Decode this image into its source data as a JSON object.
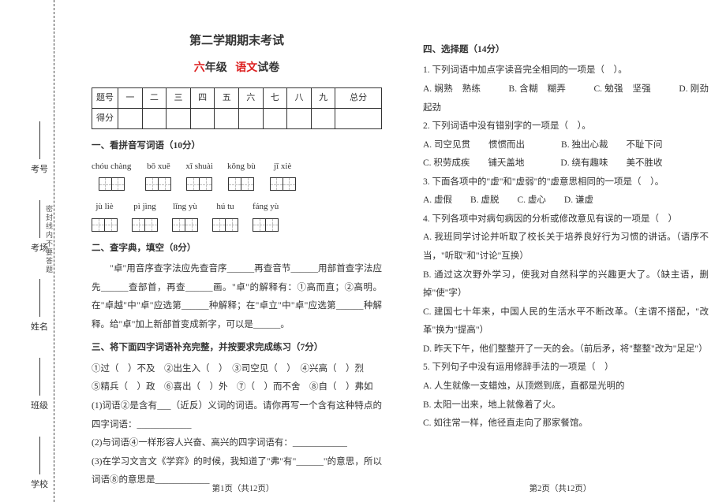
{
  "gutter": {
    "items": [
      {
        "label": "考号"
      },
      {
        "label": "考场"
      },
      {
        "label": "姓名"
      },
      {
        "label": "班级"
      },
      {
        "label": "学校"
      }
    ],
    "seal": "密封线内不要答题"
  },
  "header": {
    "line1": "第二学期期末考试",
    "grade": "六",
    "grade_suffix": "年级",
    "subject": "语文",
    "subject_suffix": "试卷"
  },
  "score_table": {
    "row1": [
      "题号",
      "一",
      "二",
      "三",
      "四",
      "五",
      "六",
      "七",
      "八",
      "九",
      "总分"
    ],
    "row2_label": "得分"
  },
  "sect1": {
    "title": "一、看拼音写词语（10分）",
    "row1": [
      {
        "py": "chóu chàng",
        "n": 2
      },
      {
        "py": "bō xuē",
        "n": 2
      },
      {
        "py": "xī shuài",
        "n": 2
      },
      {
        "py": "kǒng bù",
        "n": 2
      },
      {
        "py": "jī xiè",
        "n": 2
      }
    ],
    "row2": [
      {
        "py": "jù liè",
        "n": 2
      },
      {
        "py": "pì jìng",
        "n": 2
      },
      {
        "py": "lǐng yù",
        "n": 2
      },
      {
        "py": "hú tu",
        "n": 2
      },
      {
        "py": "fáng yù",
        "n": 2
      }
    ]
  },
  "sect2": {
    "title": "二、查字典，填空（8分）",
    "body": "　　\"卓\"用音序查字法应先查音序______再查音节______用部首查字法应先______查部首，再查______画。\"卓\"的解释有：①高而直；②高明。在\"卓越\"中\"卓\"应选第______种解释；在\"卓立\"中\"卓\"应选第______种解释。给\"卓\"加上新部首变成新字，可以是______。"
  },
  "sect3": {
    "title": "三、将下面四字词语补充完整，并按要求完成练习（7分）",
    "line1": "①过（　）不及　②出生入（　）　③司空见（　）　④兴高（　）烈",
    "line2": "⑤精兵（　）政　⑥喜出（　）外　⑦（　）而不舍　⑧自（　）弗如",
    "line3": "(1)词语②是含有___（近反）义词的词语。请你再写一个含有这种特点的四字词语：____________",
    "line4": "(2)与词语④一样形容人兴奋、高兴的四字词语有：____________",
    "line5": "(3)在学习文言文《学弈》的时候，我知道了\"弗\"有\"______\"的意思，所以词语⑧的意思是____________"
  },
  "sect4": {
    "title": "四、选择题（14分）",
    "q1": {
      "stem": "1. 下列词语中加点字读音完全相同的一项是（　）。",
      "opts": "A. 娴熟　熟练　　　B. 含糊　糊弄　　　C. 勉强　坚强　　　D. 刚劲　起劲"
    },
    "q2": {
      "stem": "2. 下列词语中没有错别字的一项是（　）。",
      "a": "A. 司空见贯　　惯惯而出　　　　B. 独出心裁　　不耻下问",
      "b": "C. 积劳成疾　　铺天盖地　　　　D. 绕有趣味　　美不胜收"
    },
    "q3": {
      "stem": "3. 下面各项中的\"虚\"和\"虚弱\"的\"虚意思相同的一项是（　）。",
      "opts": "A. 虚假　　B. 虚脱　　C. 虚心　　D. 谦虚"
    },
    "q4": {
      "stem": "4. 下列各项中对病句病因的分析或修改意见有误的一项是（　）",
      "a": "A. 我班同学讨论并听取了校长关于培养良好行为习惯的讲话。（语序不当，\"听取\"和\"讨论\"互换）",
      "b": "B. 通过这次野外学习，使我对自然科学的兴趣更大了。（缺主语，删掉\"使\"字）",
      "c": "C. 建国七十年来，中国人民的生活水平不断改革。（主谓不搭配，\"改革\"换为\"提高\"）",
      "d": "D. 昨天下午，他们整整开了一天的会。（前后矛，将\"整整\"改为\"足足\"）"
    },
    "q5": {
      "stem": "5. 下列句子中没有运用修辞手法的一项是（　）",
      "a": "A. 人生就像一支蜡烛，从顶燃到底，直都是光明的",
      "b": "B. 太阳一出来，地上就像着了火。",
      "c": "C. 如往常一样，他径直走向了那家餐馆。"
    }
  },
  "pages": {
    "left": "第1页（共12页）",
    "right": "第2页（共12页）"
  }
}
